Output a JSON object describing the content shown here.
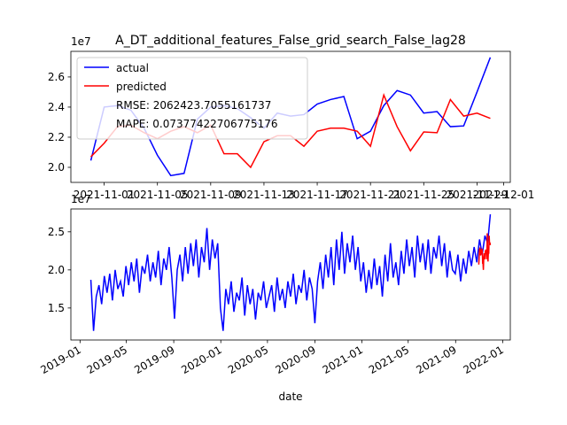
{
  "chart_data": [
    {
      "type": "line",
      "title": "A_DT_additional_features_False_grid_search_False_lag28",
      "y_offset_label": "1e7",
      "x": [
        "2021-10-31",
        "2021-11-01",
        "2021-11-02",
        "2021-11-03",
        "2021-11-04",
        "2021-11-05",
        "2021-11-06",
        "2021-11-07",
        "2021-11-08",
        "2021-11-09",
        "2021-11-10",
        "2021-11-11",
        "2021-11-12",
        "2021-11-13",
        "2021-11-14",
        "2021-11-15",
        "2021-11-16",
        "2021-11-17",
        "2021-11-18",
        "2021-11-19",
        "2021-11-20",
        "2021-11-21",
        "2021-11-22",
        "2021-11-23",
        "2021-11-24",
        "2021-11-25",
        "2021-11-26",
        "2021-11-27",
        "2021-11-28",
        "2021-11-29",
        "2021-11-30"
      ],
      "series": [
        {
          "name": "actual",
          "color": "#0000ff",
          "values": [
            2.045,
            2.4,
            2.41,
            2.38,
            2.26,
            2.08,
            1.945,
            1.96,
            2.32,
            2.4,
            2.41,
            2.39,
            2.33,
            2.26,
            2.36,
            2.34,
            2.35,
            2.42,
            2.45,
            2.47,
            2.19,
            2.24,
            2.41,
            2.51,
            2.48,
            2.36,
            2.37,
            2.27,
            2.275,
            2.5,
            2.73
          ]
        },
        {
          "name": "predicted",
          "color": "#ff0000",
          "values": [
            2.07,
            2.16,
            2.27,
            2.28,
            2.23,
            2.19,
            2.24,
            2.27,
            2.23,
            2.28,
            2.09,
            2.09,
            2.0,
            2.17,
            2.21,
            2.21,
            2.14,
            2.24,
            2.26,
            2.26,
            2.24,
            2.14,
            2.48,
            2.27,
            2.11,
            2.235,
            2.23,
            2.45,
            2.34,
            2.36,
            2.325
          ]
        }
      ],
      "legend_texts": [
        "RMSE: 2062423.7055161737",
        "MAPE: 0.07377422706775176"
      ],
      "legend": "upper left",
      "ylim": [
        1.9,
        2.77
      ],
      "yticks": [
        {
          "value": 2,
          "label": "2.0"
        },
        2.2,
        2.4,
        2.6
      ],
      "xticks": [
        "2021-11-01",
        "2021-11-05",
        "2021-11-09",
        "2021-11-13",
        "2021-11-17",
        "2021-11-21",
        "2021-11-25",
        "2021-11-29",
        "2021-12-01"
      ]
    },
    {
      "type": "line",
      "xlabel": "date",
      "y_offset_label": "1e7",
      "series": [
        {
          "color": "#0000ff",
          "x_start": "2019-01-29",
          "x_step_days": 7,
          "values": [
            1.87,
            1.2,
            1.65,
            1.8,
            1.55,
            1.92,
            1.7,
            1.95,
            1.6,
            2.0,
            1.75,
            1.85,
            1.65,
            2.05,
            1.8,
            2.1,
            1.85,
            2.15,
            1.7,
            2.05,
            1.95,
            2.2,
            1.85,
            2.1,
            1.9,
            2.25,
            1.8,
            2.15,
            2.0,
            2.3,
            1.9,
            1.36,
            2.0,
            2.2,
            1.85,
            2.3,
            1.95,
            2.35,
            2.05,
            2.4,
            1.9,
            2.3,
            2.1,
            2.55,
            2.0,
            2.4,
            2.15,
            2.35,
            1.5,
            1.2,
            1.75,
            1.55,
            1.85,
            1.45,
            1.7,
            1.6,
            1.9,
            1.4,
            1.8,
            1.55,
            1.75,
            1.35,
            1.7,
            1.6,
            1.85,
            1.5,
            1.65,
            1.8,
            1.45,
            1.9,
            1.6,
            1.75,
            1.5,
            1.85,
            1.65,
            1.95,
            1.55,
            1.8,
            1.7,
            2.0,
            1.6,
            1.9,
            1.75,
            1.3,
            1.85,
            2.1,
            1.75,
            2.2,
            1.9,
            2.3,
            1.8,
            2.4,
            2.0,
            2.5,
            1.95,
            2.35,
            2.1,
            2.45,
            2.0,
            2.3,
            1.85,
            2.1,
            1.7,
            2.0,
            1.75,
            2.15,
            1.8,
            2.05,
            1.65,
            2.2,
            1.85,
            2.35,
            1.9,
            2.1,
            1.8,
            2.25,
            1.95,
            2.4,
            2.05,
            2.3,
            1.9,
            2.45,
            2.1,
            2.35,
            2.0,
            2.4,
            1.95,
            2.3,
            2.15,
            2.45,
            2.05,
            2.35,
            1.9,
            2.25,
            2.0,
            1.95,
            2.2,
            1.85,
            2.15,
            1.95,
            2.25,
            2.05,
            2.3,
            2.1,
            2.4,
            2.2,
            2.45,
            2.35,
            2.73
          ]
        },
        {
          "color": "#ff0000",
          "x_start": "2021-10-31",
          "x_step_days": 1,
          "values": [
            2.07,
            2.16,
            2.27,
            2.28,
            2.23,
            2.19,
            2.24,
            2.27,
            2.23,
            2.28,
            2.09,
            2.09,
            2.0,
            2.17,
            2.21,
            2.21,
            2.14,
            2.24,
            2.26,
            2.26,
            2.24,
            2.14,
            2.48,
            2.27,
            2.11,
            2.235,
            2.23,
            2.45,
            2.34,
            2.36,
            2.325
          ]
        }
      ],
      "ylim": [
        1.08,
        2.8
      ],
      "yticks": [
        1.5,
        {
          "value": 2,
          "label": "2.0"
        },
        2.5
      ],
      "xticks": [
        "2019-01",
        "2019-05",
        "2019-09",
        "2020-01",
        "2020-05",
        "2020-09",
        "2021-01",
        "2021-05",
        "2021-09",
        "2022-01"
      ]
    }
  ]
}
